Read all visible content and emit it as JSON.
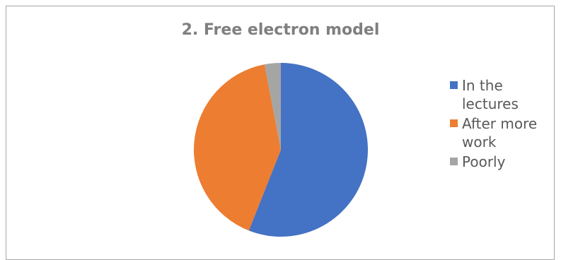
{
  "chart_data": {
    "type": "pie",
    "title": "2. Free electron model",
    "categories": [
      "In the lectures",
      "After more work",
      "Poorly"
    ],
    "values": [
      56,
      41,
      3
    ],
    "colors": [
      "#4472c4",
      "#ed7d31",
      "#a5a5a5"
    ],
    "legend_position": "right"
  }
}
